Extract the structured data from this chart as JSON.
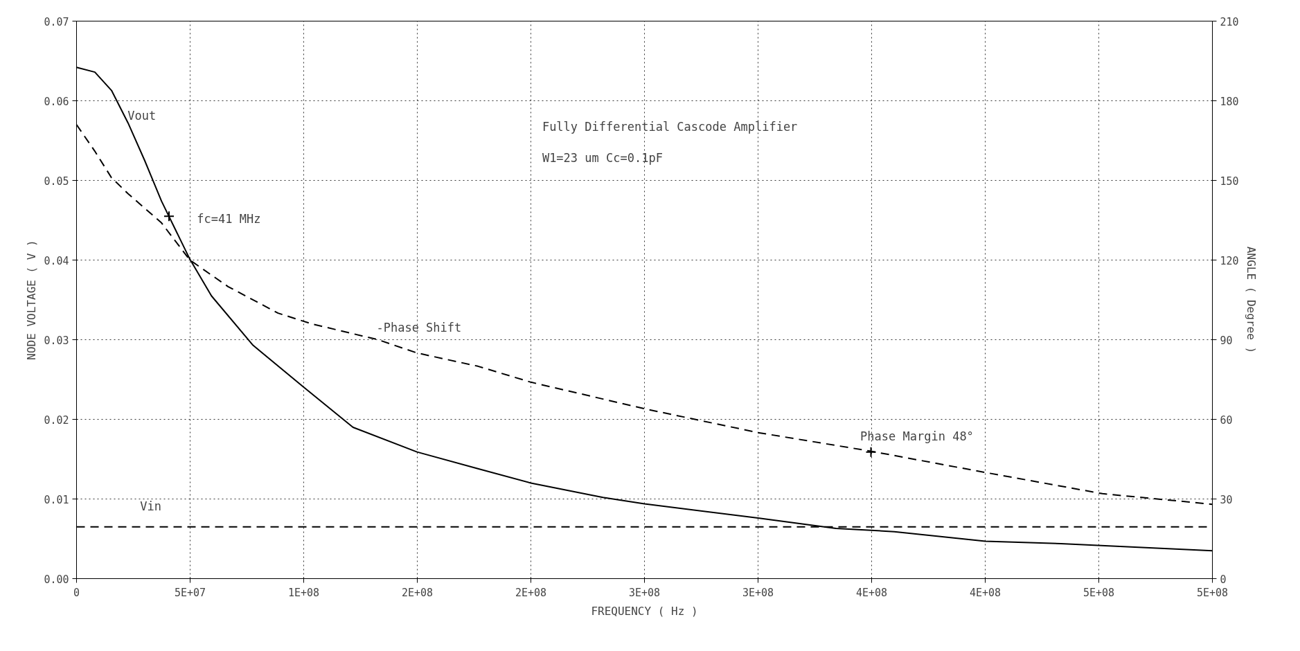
{
  "chart_data": {
    "type": "line",
    "title": "Fully Differential Cascode Amplifier",
    "subtitle": "W1=23 um Cc=0.1pF",
    "xlabel": "FREQUENCY ( Hz )",
    "ylabel": "NODE VOLTAGE ( V )",
    "y2label": "ANGLE ( Degree )",
    "xlim": [
      0,
      500000000
    ],
    "ylim": [
      0,
      0.07
    ],
    "y2lim": [
      0,
      210
    ],
    "xticks": [
      {
        "value": 0,
        "label": "0"
      },
      {
        "value": 50000000,
        "label": "5E+07"
      },
      {
        "value": 100000000,
        "label": "1E+08"
      },
      {
        "value": 150000000,
        "label": "2E+08"
      },
      {
        "value": 200000000,
        "label": "2E+08"
      },
      {
        "value": 250000000,
        "label": "3E+08"
      },
      {
        "value": 300000000,
        "label": "3E+08"
      },
      {
        "value": 350000000,
        "label": "4E+08"
      },
      {
        "value": 400000000,
        "label": "4E+08"
      },
      {
        "value": 450000000,
        "label": "5E+08"
      },
      {
        "value": 500000000,
        "label": "5E+08"
      }
    ],
    "yticks": [
      {
        "value": 0,
        "label": "0.00"
      },
      {
        "value": 0.01,
        "label": "0.01"
      },
      {
        "value": 0.02,
        "label": "0.02"
      },
      {
        "value": 0.03,
        "label": "0.03"
      },
      {
        "value": 0.04,
        "label": "0.04"
      },
      {
        "value": 0.05,
        "label": "0.05"
      },
      {
        "value": 0.06,
        "label": "0.06"
      },
      {
        "value": 0.07,
        "label": "0.07"
      }
    ],
    "y2ticks": [
      0,
      30,
      60,
      90,
      120,
      150,
      180,
      210
    ],
    "grid": true,
    "marker": "none",
    "series": [
      {
        "color": "#000000",
        "line_style": "solid",
        "x": [
          0,
          8060000,
          15400000,
          22700000,
          30000000,
          37400000,
          49900000,
          59400000,
          77700000,
          99700000,
          121700000,
          149900000,
          176700000,
          200000000,
          231700000,
          250000000,
          300000000,
          334300000,
          360000000,
          400000000,
          433300000,
          500000000
        ],
        "values": [
          0.0642,
          0.0636,
          0.0613,
          0.0572,
          0.0525,
          0.0474,
          0.0401,
          0.0355,
          0.0293,
          0.0241,
          0.019,
          0.0159,
          0.0138,
          0.012,
          0.0102,
          0.0094,
          0.0076,
          0.0063,
          0.0059,
          0.0047,
          0.0044,
          0.0035
        ]
      },
      {
        "color": "#000000",
        "line_style": "dashed",
        "axis": "y2",
        "x": [
          0,
          8060000,
          15400000,
          22700000,
          37400000,
          49900000,
          66700000,
          88700000,
          103400000,
          132700000,
          149900000,
          176700000,
          200000000,
          250000000,
          300000000,
          349700000,
          400000000,
          451600000,
          500000000
        ],
        "values": [
          171,
          161,
          151,
          145,
          134,
          120,
          110,
          100,
          96,
          90,
          85,
          80,
          74,
          64,
          55,
          48,
          40,
          32,
          28
        ]
      },
      {
        "color": "#000000",
        "line_style": "dashed",
        "x": [
          0,
          500000000
        ],
        "values": [
          0.0065,
          0.0065
        ]
      },
      {
        "type": "scatter",
        "marker": "cross",
        "color": "#000000",
        "x": [
          40700000,
          349700000
        ],
        "values": [
          0.0455,
          0.0159
        ]
      }
    ],
    "annotations": [
      "Vout",
      "Vin",
      "-Phase Shift",
      "fc=41 MHz",
      "Phase Margin 48°"
    ]
  }
}
